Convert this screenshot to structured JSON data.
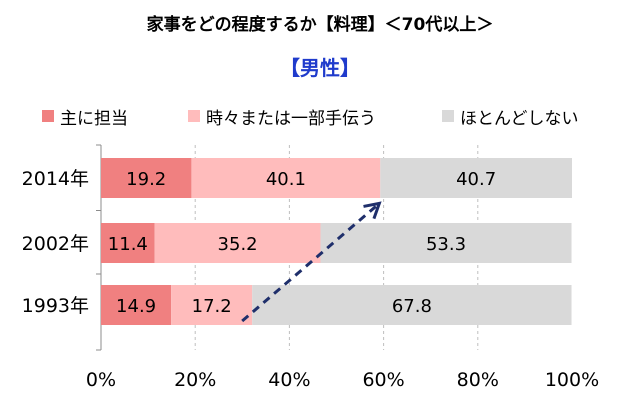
{
  "title": "家事をどの程度するか【料理】＜70代以上＞",
  "subtitle": "【男性】",
  "colors": {
    "series": [
      "#f08080",
      "#ffbcbc",
      "#d9d9d9"
    ],
    "arrow": "#1f2f6b",
    "grid": "#bfbfbf"
  },
  "chart_data": {
    "type": "bar",
    "orientation": "horizontal",
    "stacked": true,
    "categories": [
      "2014年",
      "2002年",
      "1993年"
    ],
    "series": [
      {
        "name": "主に担当",
        "values": [
          19.2,
          11.4,
          14.9
        ]
      },
      {
        "name": "時々または一部手伝う",
        "values": [
          40.1,
          35.2,
          17.2
        ]
      },
      {
        "name": "ほとんどしない",
        "values": [
          40.7,
          53.3,
          67.8
        ]
      }
    ],
    "xlim": [
      0,
      100
    ],
    "xticks": [
      "0%",
      "20%",
      "40%",
      "60%",
      "80%",
      "100%"
    ],
    "xgrid": true,
    "legend_position": "top",
    "annotation": {
      "type": "dashed-arrow",
      "from": {
        "category": "1993年",
        "x": 32.1
      },
      "to": {
        "category": "2014年",
        "x": 59.3
      }
    }
  }
}
